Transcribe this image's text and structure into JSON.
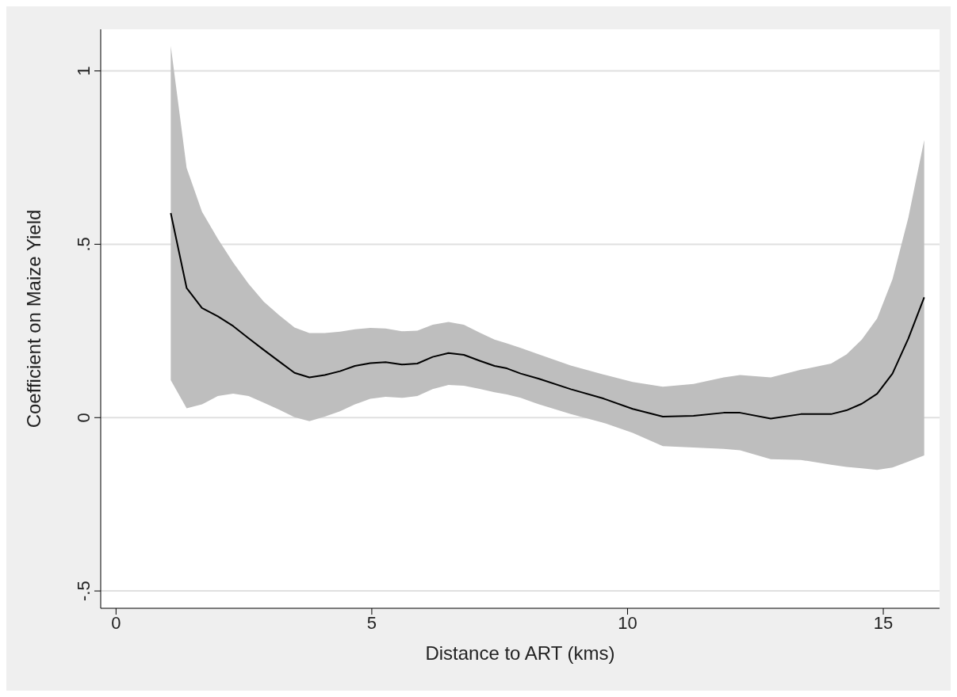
{
  "chart_data": {
    "type": "line",
    "xlabel": "Distance to ART (kms)",
    "ylabel": "Coefficient on Maize Yield",
    "x": [
      1.07,
      1.38,
      1.68,
      1.99,
      2.29,
      2.59,
      2.89,
      3.19,
      3.49,
      3.78,
      4.08,
      4.38,
      4.67,
      4.97,
      5.27,
      5.59,
      5.89,
      6.19,
      6.5,
      6.8,
      7.11,
      7.4,
      7.64,
      7.91,
      8.27,
      8.89,
      9.51,
      10.1,
      10.69,
      11.29,
      11.88,
      12.2,
      12.8,
      13.39,
      13.98,
      14.28,
      14.58,
      14.88,
      15.18,
      15.49,
      15.8
    ],
    "series": [
      {
        "color": "#000000",
        "values": [
          0.59,
          0.374,
          0.316,
          0.292,
          0.264,
          0.229,
          0.195,
          0.162,
          0.129,
          0.116,
          0.123,
          0.134,
          0.149,
          0.157,
          0.16,
          0.153,
          0.156,
          0.175,
          0.186,
          0.181,
          0.164,
          0.149,
          0.142,
          0.127,
          0.112,
          0.082,
          0.056,
          0.025,
          0.003,
          0.005,
          0.014,
          0.014,
          -0.003,
          0.01,
          0.01,
          0.021,
          0.04,
          0.069,
          0.127,
          0.228,
          0.347
        ],
        "lower": [
          0.108,
          0.027,
          0.038,
          0.062,
          0.069,
          0.062,
          0.043,
          0.023,
          0.001,
          -0.01,
          0.003,
          0.018,
          0.038,
          0.054,
          0.06,
          0.057,
          0.062,
          0.082,
          0.094,
          0.092,
          0.083,
          0.073,
          0.067,
          0.057,
          0.038,
          0.01,
          -0.014,
          -0.044,
          -0.082,
          -0.086,
          -0.09,
          -0.094,
          -0.12,
          -0.122,
          -0.136,
          -0.142,
          -0.146,
          -0.151,
          -0.144,
          -0.127,
          -0.109
        ],
        "upper": [
          1.072,
          0.72,
          0.594,
          0.516,
          0.447,
          0.386,
          0.334,
          0.295,
          0.26,
          0.244,
          0.244,
          0.248,
          0.255,
          0.259,
          0.257,
          0.249,
          0.251,
          0.268,
          0.276,
          0.268,
          0.245,
          0.225,
          0.214,
          0.201,
          0.182,
          0.15,
          0.125,
          0.103,
          0.089,
          0.097,
          0.116,
          0.123,
          0.116,
          0.138,
          0.156,
          0.182,
          0.225,
          0.286,
          0.399,
          0.577,
          0.801
        ]
      }
    ],
    "xlim": [
      -0.3,
      16.1
    ],
    "xticks": [
      0,
      5,
      10,
      15
    ],
    "ylim": [
      -0.55,
      1.12
    ],
    "yticks": [
      {
        "value": -0.5,
        "label": "-.5"
      },
      0,
      {
        "value": 0.5,
        "label": ".5"
      },
      1
    ],
    "grid": "y",
    "line_style": "solid",
    "marker": "none"
  }
}
